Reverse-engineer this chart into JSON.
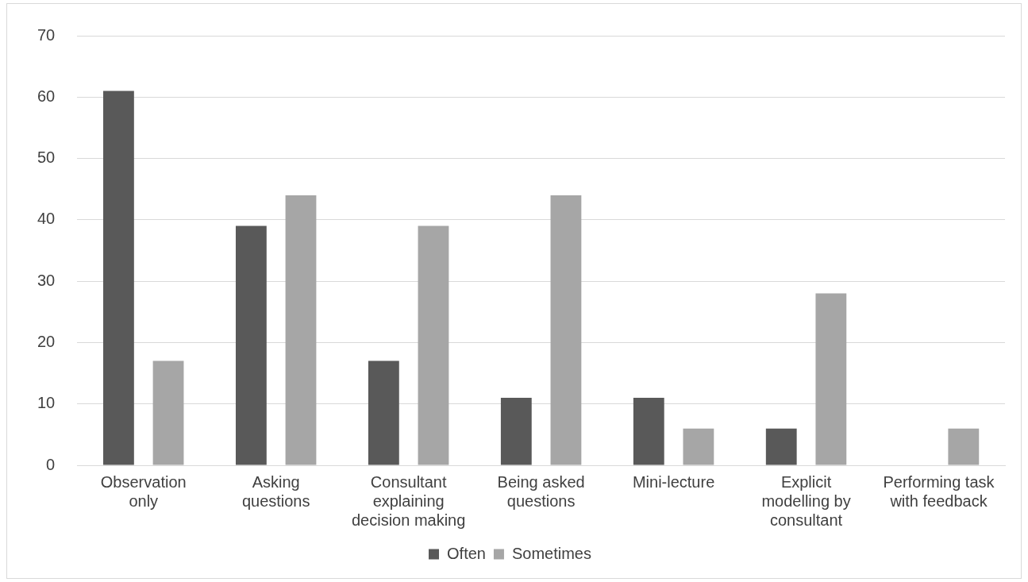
{
  "chart_data": {
    "type": "bar",
    "categories": [
      "Observation only",
      "Asking questions",
      "Consultant explaining decision making",
      "Being asked questions",
      "Mini-lecture",
      "Explicit modelling by consultant",
      "Performing task with feedback"
    ],
    "series": [
      {
        "name": "Often",
        "color": "#595959",
        "values": [
          61,
          39,
          17,
          11,
          11,
          6,
          0
        ]
      },
      {
        "name": "Sometimes",
        "color": "#a6a6a6",
        "values": [
          17,
          44,
          39,
          44,
          6,
          28,
          6
        ]
      }
    ],
    "ylim": [
      0,
      70
    ],
    "yticks": [
      0,
      10,
      20,
      30,
      40,
      50,
      60,
      70
    ],
    "grid": "y",
    "legend": "bottom"
  }
}
